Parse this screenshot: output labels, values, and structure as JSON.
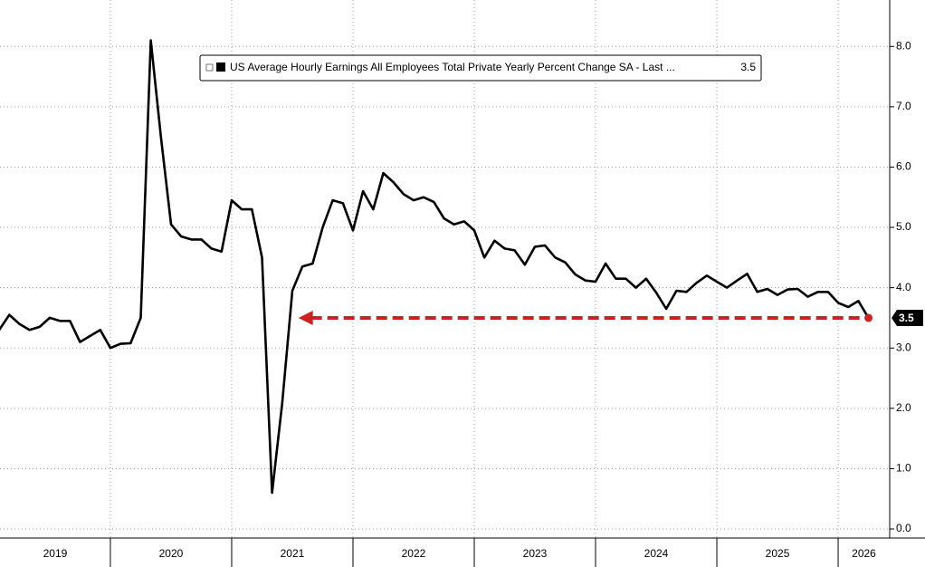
{
  "chart_data": {
    "type": "line",
    "series": [
      {
        "name": "US Average Hourly Earnings All Employees Total Private Yearly Percent Change SA - Last ...",
        "color": "#000000",
        "x": [
          2019.083,
          2019.167,
          2019.25,
          2019.333,
          2019.417,
          2019.5,
          2019.583,
          2019.667,
          2019.75,
          2019.833,
          2019.917,
          2020.0,
          2020.083,
          2020.167,
          2020.25,
          2020.333,
          2020.417,
          2020.5,
          2020.583,
          2020.667,
          2020.75,
          2020.833,
          2020.917,
          2021.0,
          2021.083,
          2021.167,
          2021.25,
          2021.333,
          2021.417,
          2021.5,
          2021.583,
          2021.667,
          2021.75,
          2021.833,
          2021.917,
          2022.0,
          2022.083,
          2022.167,
          2022.25,
          2022.333,
          2022.417,
          2022.5,
          2022.583,
          2022.667,
          2022.75,
          2022.833,
          2022.917,
          2023.0,
          2023.083,
          2023.167,
          2023.25,
          2023.333,
          2023.417,
          2023.5,
          2023.583,
          2023.667,
          2023.75,
          2023.833,
          2023.917,
          2024.0,
          2024.083,
          2024.167,
          2024.25,
          2024.333,
          2024.417,
          2024.5,
          2024.583,
          2024.667,
          2024.75,
          2024.833,
          2024.917,
          2025.0,
          2025.083,
          2025.167,
          2025.25,
          2025.333,
          2025.417,
          2025.5,
          2025.583,
          2025.667,
          2025.75,
          2025.833,
          2025.917,
          2026.0,
          2026.083,
          2026.167,
          2026.25
        ],
        "values": [
          3.3,
          3.55,
          3.4,
          3.3,
          3.35,
          3.5,
          3.45,
          3.45,
          3.1,
          3.2,
          3.3,
          3.0,
          3.07,
          3.08,
          3.5,
          8.1,
          6.5,
          5.05,
          4.85,
          4.8,
          4.8,
          4.65,
          4.6,
          5.45,
          5.3,
          5.3,
          4.5,
          0.6,
          2.1,
          3.95,
          4.35,
          4.4,
          5.0,
          5.45,
          5.4,
          4.95,
          5.6,
          5.3,
          5.9,
          5.75,
          5.55,
          5.45,
          5.5,
          5.42,
          5.15,
          5.05,
          5.1,
          4.95,
          4.5,
          4.78,
          4.65,
          4.62,
          4.38,
          4.68,
          4.7,
          4.5,
          4.42,
          4.22,
          4.12,
          4.1,
          4.4,
          4.15,
          4.15,
          4.0,
          4.15,
          3.92,
          3.65,
          3.95,
          3.93,
          4.08,
          4.2,
          4.1,
          4.0,
          4.12,
          4.23,
          3.93,
          3.98,
          3.88,
          3.97,
          3.98,
          3.85,
          3.93,
          3.93,
          3.75,
          3.68,
          3.78,
          3.5
        ]
      }
    ],
    "reference_line": {
      "y": 3.5,
      "x": [
        2021.55,
        2026.25
      ],
      "color": "#cc2222"
    },
    "xlim": [
      2019.09,
      2026.425
    ],
    "xticks": [
      2019,
      2020,
      2021,
      2022,
      2023,
      2024,
      2025,
      2026
    ],
    "ylim": [
      -0.15,
      8.77
    ],
    "yticks": [
      {
        "value": 0,
        "label": "0.0"
      },
      {
        "value": 1,
        "label": "1.0"
      },
      {
        "value": 2,
        "label": "2.0"
      },
      {
        "value": 3,
        "label": "3.0"
      },
      {
        "value": 4,
        "label": "4.0"
      },
      {
        "value": 5,
        "label": "5.0"
      },
      {
        "value": 6,
        "label": "6.0"
      },
      {
        "value": 7,
        "label": "7.0"
      },
      {
        "value": 8,
        "label": "8.0"
      }
    ],
    "grid": true
  }
}
